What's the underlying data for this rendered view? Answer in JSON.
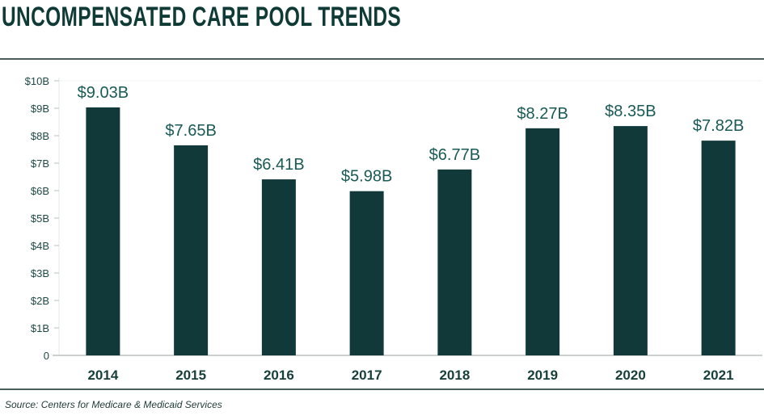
{
  "chart_data": {
    "type": "bar",
    "title": "UNCOMPENSATED CARE POOL TRENDS",
    "categories": [
      "2014",
      "2015",
      "2016",
      "2017",
      "2018",
      "2019",
      "2020",
      "2021"
    ],
    "values": [
      9.03,
      7.65,
      6.41,
      5.98,
      6.77,
      8.27,
      8.35,
      7.82
    ],
    "data_labels": [
      "$9.03B",
      "$7.65B",
      "$6.41B",
      "$5.98B",
      "$6.77B",
      "$8.27B",
      "$8.35B",
      "$7.82B"
    ],
    "ylim": [
      0,
      10
    ],
    "yticks": [
      0,
      1,
      2,
      3,
      4,
      5,
      6,
      7,
      8,
      9,
      10
    ],
    "ytick_labels": [
      "0",
      "$1B",
      "$2B",
      "$3B",
      "$4B",
      "$5B",
      "$6B",
      "$7B",
      "$8B",
      "$9B",
      "$10B"
    ],
    "xlabel": "",
    "ylabel": "",
    "grid": false,
    "colors": {
      "bar": "#11393a",
      "label": "#1a5a55",
      "axis": "#b8c2c0"
    },
    "source": "Source: Centers for Medicare & Medicaid Services"
  }
}
